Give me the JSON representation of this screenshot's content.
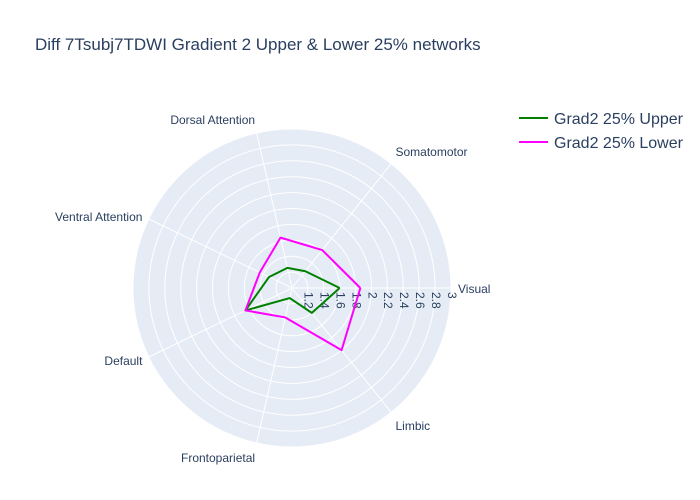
{
  "chart_data": {
    "type": "radar",
    "title": "Diff 7Tsubj7TDWI Gradient 2 Upper & Lower 25% networks",
    "categories": [
      "Visual",
      "Somatomotor",
      "Dorsal Attention",
      "Ventral Attention",
      "Default",
      "Frontoparietal",
      "Limbic"
    ],
    "radial_range": [
      1.0,
      3.0
    ],
    "radial_ticks": [
      "1.2",
      "1.4",
      "1.6",
      "1.8",
      "2",
      "2.2",
      "2.4",
      "2.6",
      "2.8",
      "3"
    ],
    "radial_tick_values": [
      1.2,
      1.4,
      1.6,
      1.8,
      2.0,
      2.2,
      2.4,
      2.6,
      2.8,
      3.0
    ],
    "series": [
      {
        "name": "Grad2 25% Upper",
        "color": "#008000",
        "values": [
          1.6,
          1.27,
          1.26,
          1.32,
          1.65,
          1.13,
          1.4
        ]
      },
      {
        "name": "Grad2 25% Lower",
        "color": "#ff00ff",
        "values": [
          1.86,
          1.61,
          1.65,
          1.45,
          1.65,
          1.38,
          2.0
        ]
      }
    ],
    "legend_position": "top-right",
    "grid": true
  }
}
